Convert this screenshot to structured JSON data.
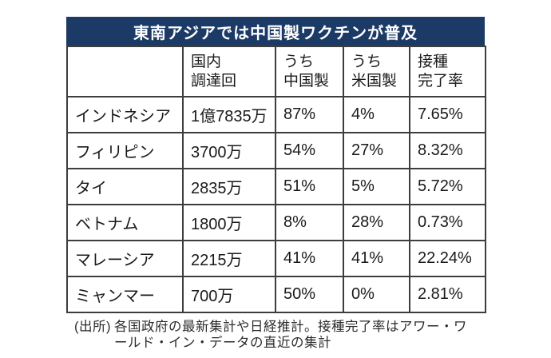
{
  "title": "東南アジアでは中国製ワクチンが普及",
  "colors": {
    "header_bg": "#1c3a66",
    "header_text": "#ffffff",
    "border": "#3d3d3d",
    "body_text": "#1a1a1a"
  },
  "source_note": {
    "prefix": "(出所)",
    "text": "各国政府の最新集計や日経推計。接種完了率はアワー・ワールド・イン・データの直近の集計"
  },
  "chart_data": {
    "type": "table",
    "title": "東南アジアでは中国製ワクチンが普及",
    "columns": [
      {
        "line1": "",
        "line2": ""
      },
      {
        "line1": "国内",
        "line2": "調達回"
      },
      {
        "line1": "うち",
        "line2": "中国製"
      },
      {
        "line1": "うち",
        "line2": "米国製"
      },
      {
        "line1": "接種",
        "line2": "完了率"
      }
    ],
    "rows": [
      {
        "country": "インドネシア",
        "domestic": "1億7835万",
        "china": "87%",
        "usa": "4%",
        "rate": "7.65%"
      },
      {
        "country": "フィリピン",
        "domestic": "3700万",
        "china": "54%",
        "usa": "27%",
        "rate": "8.32%"
      },
      {
        "country": "タイ",
        "domestic": "2835万",
        "china": "51%",
        "usa": "5%",
        "rate": "5.72%"
      },
      {
        "country": "ベトナム",
        "domestic": "1800万",
        "china": "8%",
        "usa": "28%",
        "rate": "0.73%"
      },
      {
        "country": "マレーシア",
        "domestic": "2215万",
        "china": "41%",
        "usa": "41%",
        "rate": "22.24%"
      },
      {
        "country": "ミャンマー",
        "domestic": "700万",
        "china": "50%",
        "usa": "0%",
        "rate": "2.81%"
      }
    ]
  }
}
